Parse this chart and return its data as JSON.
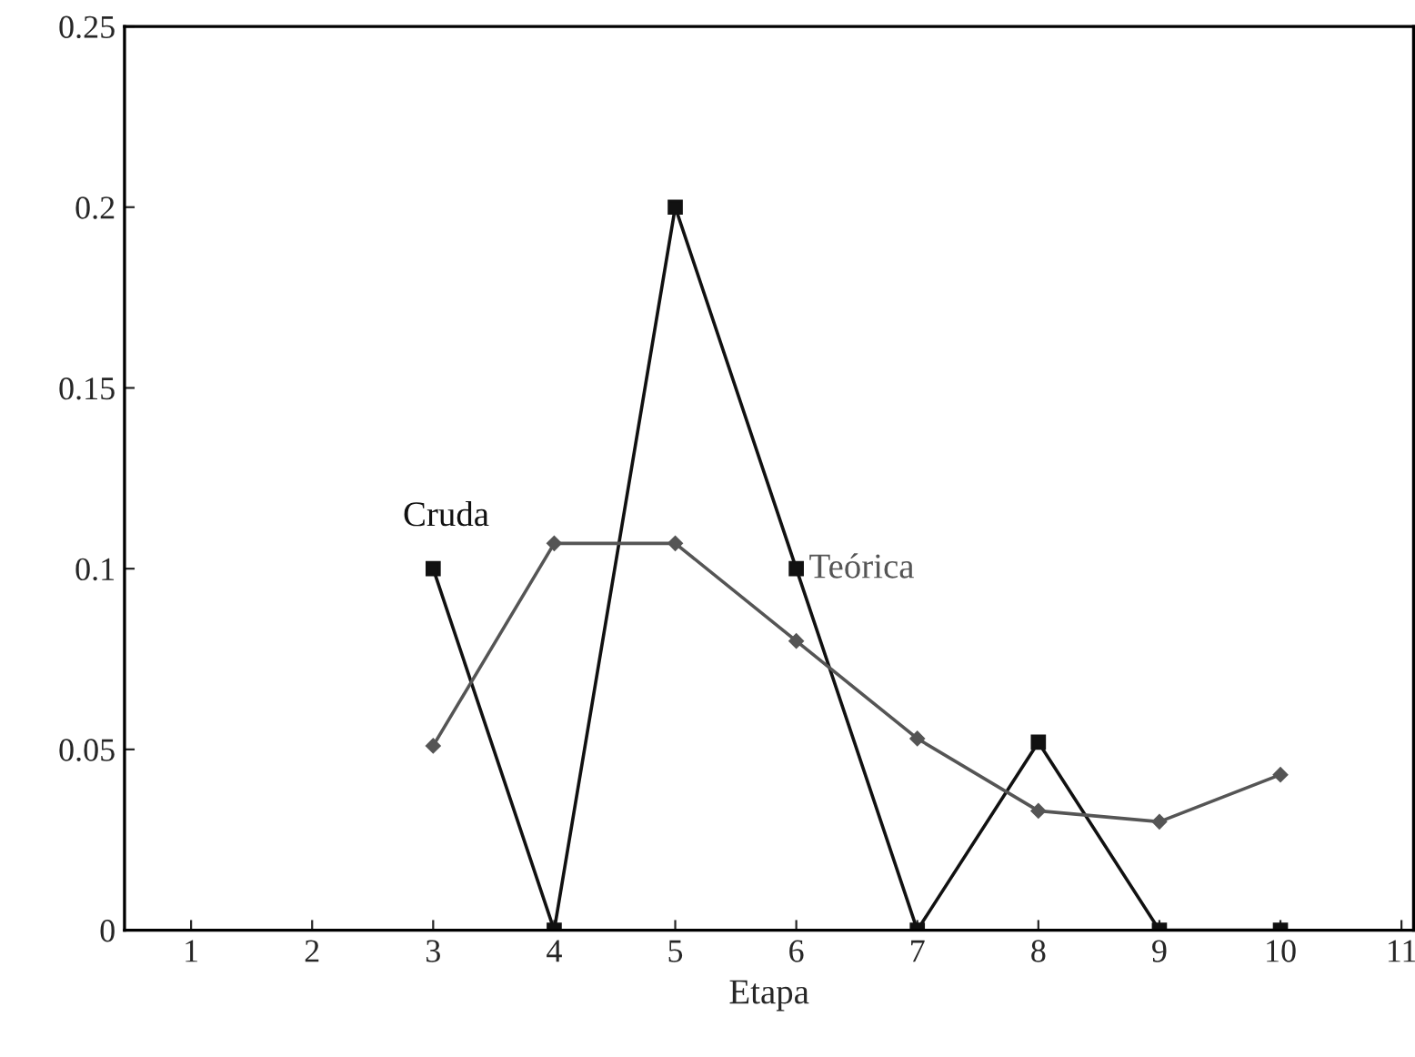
{
  "chart_data": {
    "type": "line",
    "xlabel": "Etapa",
    "x": [
      3,
      4,
      5,
      6,
      7,
      8,
      9,
      10
    ],
    "series": [
      {
        "name": "Cruda",
        "color": "#111111",
        "marker": "square",
        "values": [
          0.1,
          0,
          0.2,
          0.1,
          0,
          0.052,
          0,
          0
        ]
      },
      {
        "name": "Teórica",
        "color": "#555555",
        "marker": "diamond",
        "values": [
          0.051,
          0.107,
          0.107,
          0.08,
          0.053,
          0.033,
          0.03,
          0.043
        ]
      }
    ],
    "xlim": [
      0.45,
      11.1
    ],
    "xticks": [
      1,
      2,
      3,
      4,
      5,
      6,
      7,
      8,
      9,
      10,
      11
    ],
    "ylim": [
      0,
      0.25
    ],
    "yticks": [
      0,
      0.05,
      0.1,
      0.15,
      0.2,
      0.25
    ],
    "grid": false,
    "legend": false,
    "line_style": "solid"
  }
}
